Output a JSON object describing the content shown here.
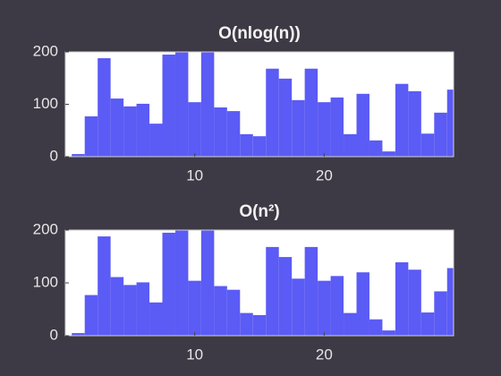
{
  "chart_data": [
    {
      "type": "bar",
      "title": "O(nlog(n))",
      "color": "#5b5bf5",
      "categories": [
        1,
        2,
        3,
        4,
        5,
        6,
        7,
        8,
        9,
        10,
        11,
        12,
        13,
        14,
        15,
        16,
        17,
        18,
        19,
        20,
        21,
        22,
        23,
        24,
        25,
        26,
        27,
        28,
        29,
        30
      ],
      "values": [
        5,
        77,
        188,
        111,
        96,
        101,
        63,
        195,
        200,
        104,
        200,
        94,
        87,
        43,
        39,
        168,
        149,
        108,
        168,
        104,
        113,
        43,
        120,
        31,
        10,
        139,
        125,
        44,
        84,
        128
      ],
      "xlim": [
        0,
        30
      ],
      "xticks": [
        10,
        20
      ],
      "ylim": [
        0,
        200
      ],
      "yticks": [
        0,
        100,
        200
      ]
    },
    {
      "type": "bar",
      "title": "O(n²)",
      "color": "#5b5bf5",
      "categories": [
        1,
        2,
        3,
        4,
        5,
        6,
        7,
        8,
        9,
        10,
        11,
        12,
        13,
        14,
        15,
        16,
        17,
        18,
        19,
        20,
        21,
        22,
        23,
        24,
        25,
        26,
        27,
        28,
        29,
        30
      ],
      "values": [
        5,
        77,
        188,
        111,
        96,
        101,
        63,
        195,
        200,
        104,
        200,
        94,
        87,
        43,
        39,
        168,
        149,
        108,
        168,
        104,
        113,
        43,
        120,
        31,
        10,
        139,
        125,
        44,
        84,
        128
      ],
      "xlim": [
        0,
        30
      ],
      "xticks": [
        10,
        20
      ],
      "ylim": [
        0,
        200
      ],
      "yticks": [
        0,
        100,
        200
      ]
    }
  ]
}
